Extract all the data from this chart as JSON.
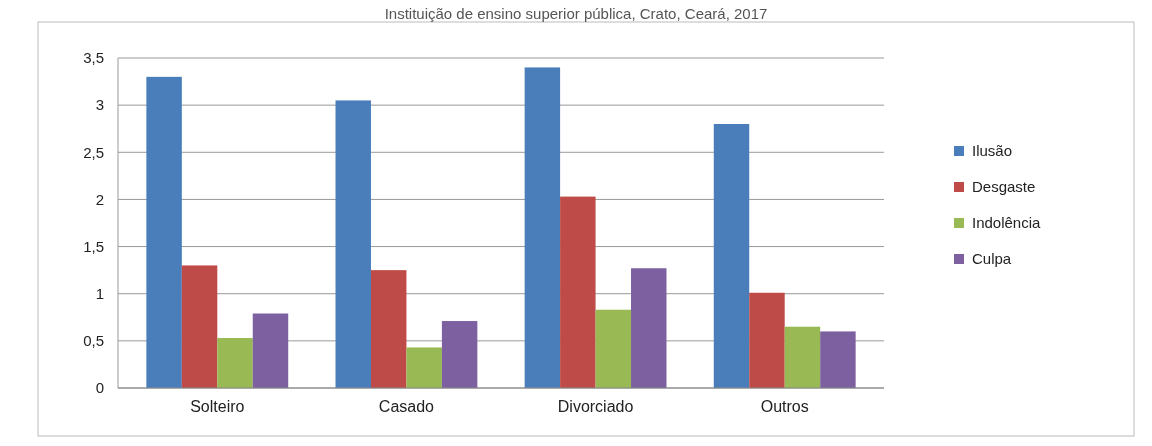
{
  "chart_data": {
    "type": "bar",
    "title": "Instituição de ensino superior pública, Crato, Ceará, 2017",
    "categories": [
      "Solteiro",
      "Casado",
      "Divorciado",
      "Outros"
    ],
    "series": [
      {
        "name": "Ilusão",
        "color": "#4a7ebb",
        "values": [
          3.3,
          3.05,
          3.4,
          2.8
        ]
      },
      {
        "name": "Desgaste",
        "color": "#be4b48",
        "values": [
          1.3,
          1.25,
          2.03,
          1.01
        ]
      },
      {
        "name": "Indolência",
        "color": "#98b954",
        "values": [
          0.53,
          0.43,
          0.83,
          0.65
        ]
      },
      {
        "name": "Culpa",
        "color": "#7d60a0",
        "values": [
          0.79,
          0.71,
          1.27,
          0.6
        ]
      }
    ],
    "ylim": [
      0,
      3.5
    ],
    "yticks": [
      0,
      {
        "value": 0.5,
        "label": "0,5"
      },
      1,
      {
        "value": 1.5,
        "label": "1,5"
      },
      2,
      {
        "value": 2.5,
        "label": "2,5"
      },
      3,
      {
        "value": 3.5,
        "label": "3,5"
      }
    ],
    "grid": "y",
    "legend": "right"
  }
}
